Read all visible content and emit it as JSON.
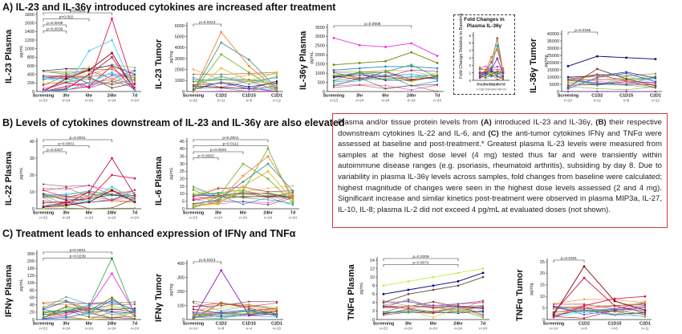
{
  "sections": {
    "a_title": "A) IL-23 and IL-36γ introduced cytokines are increased after treatment",
    "b_title": "B) Levels of cytokines downstream of IL-23 and IL-36γ are also elevated",
    "c_title": "C) Treatment leads to enhanced expression of IFNγ and TNFα"
  },
  "inset": {
    "title": "Fold Changes in Plasma IL-36γ"
  },
  "callout": {
    "t1": "Plasma and/or tissue protein levels from ",
    "a": "(A)",
    "t2": " introduced IL-23 and IL-36γ, ",
    "b": "(B)",
    "t3": " their respective downstream cytokines IL-22 and IL-6, and ",
    "c": "(C)",
    "t4": " the anti-tumor cytokines IFNγ and TNFα were assessed at baseline and post-treatment.* Greatest plasma IL-23 levels were measured from samples at the highest dose level (4 mg) tested thus far and were transiently within autoimmune disease ranges (e.g. psoriasis, rheumatoid arthritis), subsiding by day 8. Due to variability in plasma IL-36γ levels across samples, fold changes from baseline were calculated; highest magnitude of changes were seen in the highest dose levels assessed (2 and 4 mg). Significant increase and similar kinetics post-treatment were observed in plasma MIP3a, IL-27, IL-10, IL-8; plasma IL-2 did not exceed 4 pg/mL at evaluated doses (not shown)."
  },
  "colors": [
    "#e6194b",
    "#3cb44b",
    "#4363d8",
    "#f58231",
    "#911eb4",
    "#42d4f4",
    "#f032e6",
    "#bfef45",
    "#469990",
    "#9a6324",
    "#800000",
    "#808000",
    "#000075",
    "#dcbe2a",
    "#2f9e8f",
    "#c2185b",
    "#1e88e5",
    "#6d4c41",
    "#7cb342",
    "#ff7043"
  ],
  "charts": [
    {
      "name": "il23-plasma",
      "ylabel": "IL-23 Plasma",
      "unit": "pg/mL",
      "categories": [
        "Screening",
        "3hr",
        "6hr",
        "24hr",
        "7d"
      ],
      "ns": [
        "n=23",
        "n=24",
        "n=24",
        "n=24",
        "n=24"
      ],
      "yticks": [
        "0",
        "200",
        "400",
        "600",
        "800",
        "1000",
        "1200",
        "1400",
        "1600",
        "1800"
      ],
      "ymax": 1800,
      "pvalues": [
        {
          "label": "p<0.0001",
          "from": 0,
          "to": 3
        },
        {
          "label": "p<0.002",
          "from": 0,
          "to": 2
        },
        {
          "label": "p=0.0039",
          "from": 0,
          "to": 1
        },
        {
          "label": "p=0.0039",
          "from": 0,
          "to": 1
        }
      ],
      "spikes": [
        [
          0,
          120,
          200,
          1700,
          30
        ],
        [
          0,
          80,
          950,
          1200,
          10
        ],
        [
          0,
          300,
          500,
          900,
          20
        ],
        [
          0,
          60,
          400,
          800,
          40
        ],
        [
          0,
          40,
          120,
          600,
          15
        ],
        [
          0,
          30,
          200,
          450,
          25
        ]
      ]
    },
    {
      "name": "il23-tumor",
      "ylabel": "IL-23 Tumor",
      "unit": "pg/mg",
      "categories": [
        "Screening",
        "C1D2",
        "C1D15",
        "C2D1"
      ],
      "ns": [
        "n=20",
        "n=11",
        "n=8",
        "n=12"
      ],
      "yticks": [
        "0",
        "1000",
        "2000",
        "3000",
        "4000",
        "5000",
        "6000"
      ],
      "ymax": 6200,
      "pvalues": [
        {
          "label": "p=0.0313",
          "from": 0,
          "to": 1
        }
      ],
      "spikes": [
        [
          0,
          5600,
          2400,
          200
        ],
        [
          0,
          4600,
          3000,
          300
        ],
        [
          0,
          2200,
          1000,
          1800
        ],
        [
          0,
          3500,
          1800,
          150
        ]
      ]
    },
    {
      "name": "il36g-plasma",
      "ylabel": "IL-36γ Plasma",
      "unit": "pg/mL",
      "categories": [
        "Screening",
        "3hr",
        "6hr",
        "24hr",
        "7d"
      ],
      "ns": [
        "n=23",
        "n=24",
        "n=24",
        "n=24",
        "n=24"
      ],
      "yticks": [
        "0",
        "500",
        "1000",
        "1500",
        "2000",
        "2500",
        "3000",
        "3500"
      ],
      "ymax": 3600,
      "pvalues": [
        {
          "label": "p=0.0508",
          "from": 0,
          "to": 3
        }
      ],
      "spikes": [
        [
          3000,
          2600,
          2500,
          2700,
          2000
        ],
        [
          1500,
          1600,
          1700,
          2200,
          1600
        ],
        [
          1200,
          1300,
          1400,
          1400,
          1300
        ],
        [
          900,
          1000,
          1100,
          1500,
          800
        ]
      ]
    },
    {
      "name": "il36g-fold",
      "ylabel": "Fold Change Relative to Baseline",
      "unit": "",
      "categories": [
        "Pre",
        "3hr",
        "6hr",
        "24hr",
        "7d"
      ],
      "ns": [
        "n=23",
        "n=24",
        "n=24",
        "n=24",
        "n=24"
      ],
      "yticks": [
        "0",
        "1",
        "2",
        "3",
        "4",
        "5",
        "6"
      ],
      "ymax": 6.2,
      "pvalues": [],
      "spikes": [
        [
          1,
          1.2,
          2.5,
          5.8,
          1.2
        ],
        [
          1,
          1.1,
          1.8,
          4.8,
          1.1
        ],
        [
          1,
          1.3,
          3.2,
          4.2,
          1.4
        ],
        [
          1,
          1.0,
          1.5,
          3.0,
          1.0
        ]
      ]
    },
    {
      "name": "il36g-tumor",
      "ylabel": "IL-36γ Tumor",
      "unit": "pg/mg",
      "categories": [
        "Screening",
        "C1D2",
        "C1D15",
        "C2D1"
      ],
      "ns": [
        "n=20",
        "n=11",
        "n=8",
        "n=12"
      ],
      "yticks": [
        "0",
        "5000",
        "10000",
        "15000",
        "20000",
        "25000",
        "30000",
        "35000",
        "40000"
      ],
      "ymax": 41000,
      "pvalues": [
        {
          "label": "p=0.0156",
          "from": 0,
          "to": 1
        }
      ],
      "spikes": [
        [
          18000,
          25000,
          24000,
          23000
        ],
        [
          3000,
          16000,
          9000,
          4000
        ],
        [
          2000,
          10000,
          13000,
          7000
        ]
      ]
    },
    {
      "name": "il22-plasma",
      "ylabel": "IL-22 Plasma",
      "unit": "pg/mL",
      "categories": [
        "Screening",
        "3hr",
        "6hr",
        "24hr",
        "7d"
      ],
      "ns": [
        "n=23",
        "n=24",
        "n=24",
        "n=24",
        "n=24"
      ],
      "yticks": [
        "0",
        "10",
        "20",
        "30",
        "40"
      ],
      "ymax": 40,
      "pvalues": [
        {
          "label": "p=0.0001",
          "from": 0,
          "to": 3
        },
        {
          "label": "p=0.0001",
          "from": 0,
          "to": 2
        },
        {
          "label": "p=0.0327",
          "from": 0,
          "to": 1
        }
      ],
      "spikes": [
        [
          2,
          3,
          10,
          30,
          8
        ],
        [
          1,
          4,
          6,
          20,
          18
        ],
        [
          2,
          2,
          5,
          13,
          5
        ],
        [
          1,
          2,
          4,
          11,
          4
        ]
      ]
    },
    {
      "name": "il6-plasma",
      "ylabel": "IL-6 Plasma",
      "unit": "pg/mL",
      "categories": [
        "Screening",
        "3hr",
        "6hr",
        "24hr",
        "7d"
      ],
      "ns": [
        "n=23",
        "n=24",
        "n=24",
        "n=24",
        "n=24"
      ],
      "yticks": [
        "0",
        "5",
        "10",
        "15",
        "20",
        "25",
        "30",
        "35",
        "40",
        "45"
      ],
      "ymax": 45,
      "pvalues": [
        {
          "label": "p<0.0001",
          "from": 0,
          "to": 3
        },
        {
          "label": "p=0.0112",
          "from": 0,
          "to": 3
        },
        {
          "label": "p=0.0003",
          "from": 0,
          "to": 2
        },
        {
          "label": "p=0.0093",
          "from": 0,
          "to": 1
        }
      ],
      "spikes": [
        [
          2,
          4,
          12,
          40,
          5
        ],
        [
          1,
          5,
          22,
          35,
          8
        ],
        [
          3,
          6,
          18,
          30,
          12
        ],
        [
          2,
          3,
          15,
          25,
          6
        ],
        [
          1,
          8,
          30,
          20,
          4
        ]
      ]
    },
    {
      "name": "ifng-plasma",
      "ylabel": "IFNγ Plasma",
      "unit": "pg/mL",
      "categories": [
        "Screening",
        "3hr",
        "6hr",
        "24hr",
        "7d"
      ],
      "ns": [
        "n=23",
        "n=24",
        "n=24",
        "n=24",
        "n=24"
      ],
      "yticks": [
        "0",
        "20",
        "40",
        "60",
        "80",
        "100",
        "120",
        "180",
        "200",
        "300"
      ],
      "ymax": 300,
      "pvalues": [
        {
          "label": "p<0.0001",
          "from": 0,
          "to": 3
        },
        {
          "label": "p=0.0239",
          "from": 0,
          "to": 3
        }
      ],
      "spikes": [
        [
          10,
          40,
          60,
          280,
          20
        ],
        [
          5,
          20,
          55,
          210,
          30
        ],
        [
          8,
          60,
          40,
          100,
          15
        ],
        [
          3,
          10,
          30,
          90,
          40
        ]
      ]
    },
    {
      "name": "ifng-tumor",
      "ylabel": "IFNγ Tumor",
      "unit": "pg/mg",
      "categories": [
        "Screening",
        "C1D2",
        "C1D15",
        "C2D1"
      ],
      "ns": [
        "n=14",
        "n=8",
        "n=4",
        "n=10"
      ],
      "yticks": [
        "0",
        "100",
        "200",
        "300",
        "400"
      ],
      "ymax": 400,
      "pvalues": [
        {
          "label": "p=0.0313",
          "from": 0,
          "to": 1
        }
      ],
      "spikes": [
        [
          10,
          350,
          30,
          40
        ],
        [
          5,
          120,
          80,
          40
        ],
        [
          20,
          40,
          60,
          30
        ]
      ]
    },
    {
      "name": "tnfa-plasma",
      "ylabel": "TNFα Plasma",
      "unit": "pg/mL",
      "categories": [
        "Screening",
        "3hr",
        "6hr",
        "24hr",
        "7d"
      ],
      "ns": [
        "n=23",
        "n=24",
        "n=24",
        "n=24",
        "n=24"
      ],
      "yticks": [
        "0",
        "2",
        "4",
        "6",
        "8",
        "10",
        "12",
        "14"
      ],
      "ymax": 14,
      "pvalues": [
        {
          "label": "p=0.0309",
          "from": 0,
          "to": 3
        },
        {
          "label": "p=0.0072",
          "from": 0,
          "to": 3
        }
      ],
      "spikes": [
        [
          8,
          9,
          10,
          11,
          12
        ],
        [
          6,
          7,
          8,
          9,
          11
        ],
        [
          4,
          6,
          7,
          8,
          10
        ]
      ]
    },
    {
      "name": "tnfa-tumor",
      "ylabel": "TNFα Tumor",
      "unit": "pg/mg",
      "categories": [
        "Screening",
        "C1D2",
        "C1D15",
        "C2D1"
      ],
      "ns": [
        "n=14",
        "n=9",
        "n=6",
        "n=11"
      ],
      "yticks": [
        "0",
        "5",
        "10",
        "15",
        "20",
        "25"
      ],
      "ymax": 25,
      "pvalues": [
        {
          "label": "p=0.0301",
          "from": 0,
          "to": 1
        }
      ],
      "spikes": [
        [
          2,
          23,
          8,
          4
        ],
        [
          3,
          18,
          6,
          3
        ],
        [
          1,
          6,
          9,
          10
        ]
      ]
    }
  ]
}
